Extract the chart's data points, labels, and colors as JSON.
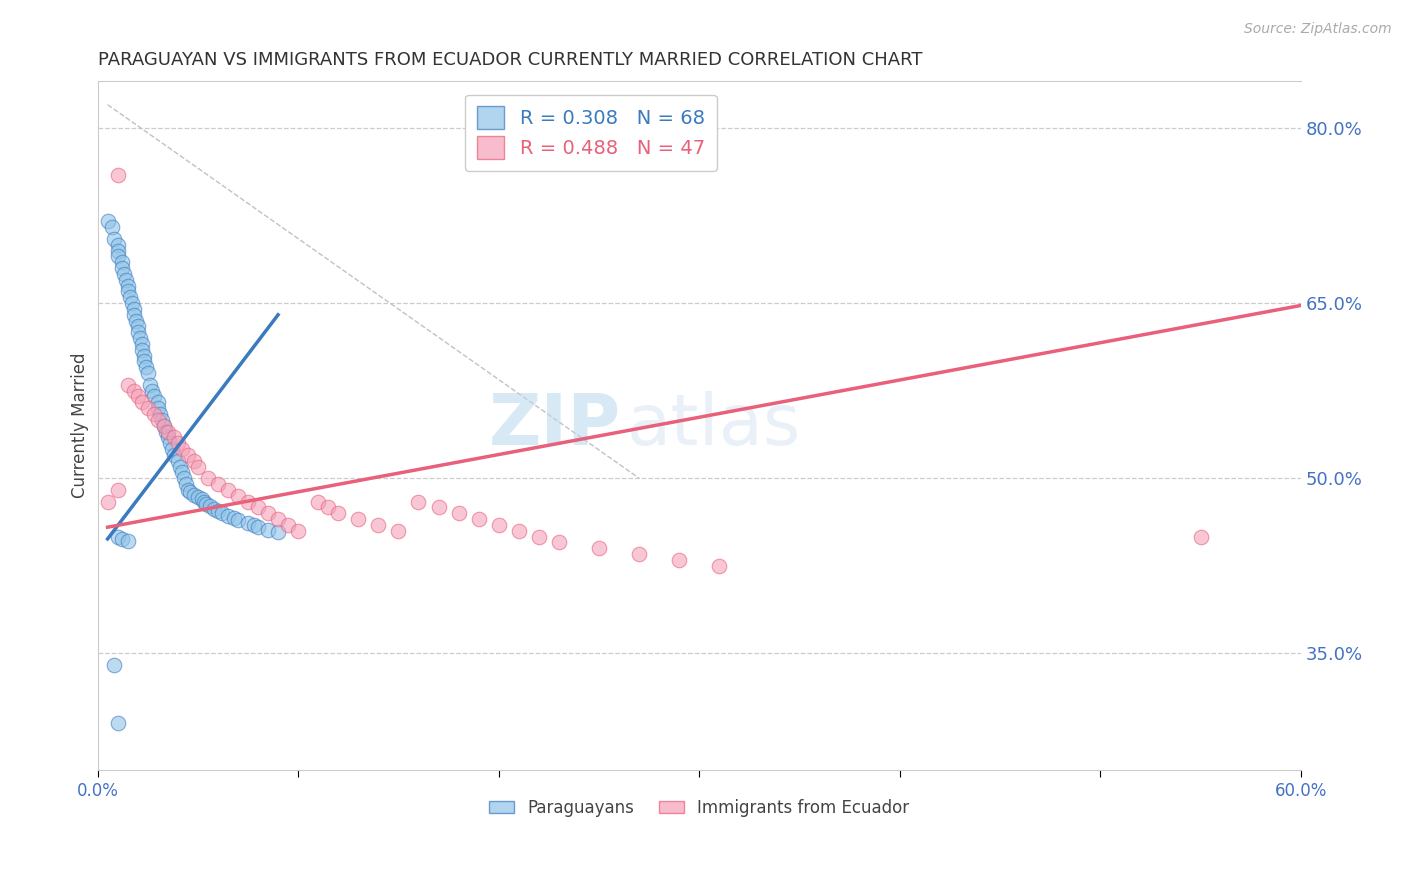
{
  "title": "PARAGUAYAN VS IMMIGRANTS FROM ECUADOR CURRENTLY MARRIED CORRELATION CHART",
  "source": "Source: ZipAtlas.com",
  "ylabel": "Currently Married",
  "xlim": [
    0.0,
    0.6
  ],
  "ylim": [
    0.25,
    0.84
  ],
  "xticks": [
    0.0,
    0.1,
    0.2,
    0.3,
    0.4,
    0.5,
    0.6
  ],
  "xticklabels": [
    "0.0%",
    "",
    "",
    "",
    "",
    "",
    "60.0%"
  ],
  "yticks_right": [
    0.35,
    0.5,
    0.65,
    0.8
  ],
  "yticklabels_right": [
    "35.0%",
    "50.0%",
    "65.0%",
    "80.0%"
  ],
  "blue_color": "#90c4e8",
  "pink_color": "#f4a0b8",
  "blue_line_color": "#3a7abf",
  "pink_line_color": "#e8607a",
  "axis_label_color": "#4472c4",
  "R_blue": 0.308,
  "N_blue": 68,
  "R_pink": 0.488,
  "N_pink": 47,
  "blue_scatter_x": [
    0.005,
    0.007,
    0.008,
    0.01,
    0.01,
    0.01,
    0.012,
    0.012,
    0.013,
    0.014,
    0.015,
    0.015,
    0.016,
    0.017,
    0.018,
    0.018,
    0.019,
    0.02,
    0.02,
    0.021,
    0.022,
    0.022,
    0.023,
    0.023,
    0.024,
    0.025,
    0.026,
    0.027,
    0.028,
    0.03,
    0.03,
    0.031,
    0.032,
    0.033,
    0.034,
    0.035,
    0.036,
    0.037,
    0.038,
    0.04,
    0.041,
    0.042,
    0.043,
    0.044,
    0.045,
    0.046,
    0.048,
    0.05,
    0.052,
    0.053,
    0.054,
    0.056,
    0.058,
    0.06,
    0.062,
    0.065,
    0.068,
    0.07,
    0.075,
    0.078,
    0.08,
    0.085,
    0.09,
    0.01,
    0.012,
    0.015,
    0.008,
    0.01
  ],
  "blue_scatter_y": [
    0.72,
    0.715,
    0.705,
    0.7,
    0.695,
    0.69,
    0.685,
    0.68,
    0.675,
    0.67,
    0.665,
    0.66,
    0.655,
    0.65,
    0.645,
    0.64,
    0.635,
    0.63,
    0.625,
    0.62,
    0.615,
    0.61,
    0.605,
    0.6,
    0.595,
    0.59,
    0.58,
    0.575,
    0.57,
    0.565,
    0.56,
    0.555,
    0.55,
    0.545,
    0.54,
    0.535,
    0.53,
    0.525,
    0.52,
    0.515,
    0.51,
    0.505,
    0.5,
    0.495,
    0.49,
    0.488,
    0.486,
    0.484,
    0.482,
    0.48,
    0.478,
    0.476,
    0.474,
    0.472,
    0.47,
    0.468,
    0.466,
    0.464,
    0.462,
    0.46,
    0.458,
    0.456,
    0.454,
    0.45,
    0.448,
    0.446,
    0.34,
    0.29
  ],
  "pink_scatter_x": [
    0.005,
    0.01,
    0.015,
    0.018,
    0.02,
    0.022,
    0.025,
    0.028,
    0.03,
    0.033,
    0.035,
    0.038,
    0.04,
    0.042,
    0.045,
    0.048,
    0.05,
    0.055,
    0.06,
    0.065,
    0.07,
    0.075,
    0.08,
    0.085,
    0.09,
    0.095,
    0.1,
    0.11,
    0.115,
    0.12,
    0.13,
    0.14,
    0.15,
    0.16,
    0.17,
    0.18,
    0.19,
    0.2,
    0.21,
    0.22,
    0.23,
    0.25,
    0.27,
    0.29,
    0.31,
    0.55,
    0.01
  ],
  "pink_scatter_y": [
    0.48,
    0.49,
    0.58,
    0.575,
    0.57,
    0.565,
    0.56,
    0.555,
    0.55,
    0.545,
    0.54,
    0.535,
    0.53,
    0.525,
    0.52,
    0.515,
    0.51,
    0.5,
    0.495,
    0.49,
    0.485,
    0.48,
    0.475,
    0.47,
    0.465,
    0.46,
    0.455,
    0.48,
    0.475,
    0.47,
    0.465,
    0.46,
    0.455,
    0.48,
    0.475,
    0.47,
    0.465,
    0.46,
    0.455,
    0.45,
    0.445,
    0.44,
    0.435,
    0.43,
    0.425,
    0.45,
    0.76
  ],
  "blue_line_x": [
    0.005,
    0.09
  ],
  "blue_line_y": [
    0.448,
    0.64
  ],
  "pink_line_x": [
    0.005,
    0.6
  ],
  "pink_line_y": [
    0.458,
    0.648
  ],
  "diag_line_x": [
    0.005,
    0.27
  ],
  "diag_line_y": [
    0.82,
    0.5
  ],
  "watermark_zip": "ZIP",
  "watermark_atlas": "atlas",
  "background_color": "#ffffff"
}
